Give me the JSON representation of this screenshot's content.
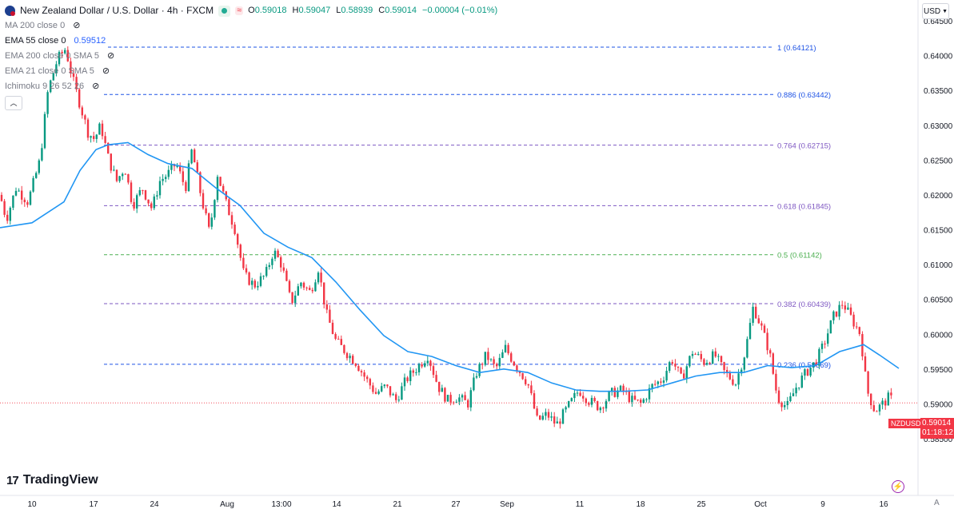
{
  "header": {
    "symbol_title": "New Zealand Dollar / U.S. Dollar · 4h · FXCM",
    "ohlc": [
      {
        "k": "O",
        "v": "0.59018"
      },
      {
        "k": "H",
        "v": "0.59047"
      },
      {
        "k": "L",
        "v": "0.58939"
      },
      {
        "k": "C",
        "v": "0.59014"
      },
      {
        "k": "",
        "v": "−0.00004 (−0.01%)"
      }
    ],
    "currency": "USD"
  },
  "indicators": [
    {
      "label": "MA 200 close 0",
      "value": ""
    },
    {
      "label": "EMA 55 close 0",
      "value": "0.59512"
    },
    {
      "label": "EMA 200 close 0 SMA 5",
      "value": ""
    },
    {
      "label": "EMA 21 close 0 SMA 5",
      "value": ""
    },
    {
      "label": "Ichimoku 9 26 52 26",
      "value": ""
    }
  ],
  "price_tag": {
    "symbol": "NZDUSD",
    "price": "0.59014",
    "countdown": "01:18:12"
  },
  "brand": "TradingView",
  "colors": {
    "up": "#089981",
    "down": "#f23645",
    "ema": "#2196f3",
    "fib_blue": "#1e53e5",
    "fib_purple": "#7e57c2",
    "fib_green": "#4caf50"
  },
  "chart_data": {
    "type": "candlestick",
    "title": "New Zealand Dollar / U.S. Dollar · 4h · FXCM",
    "ylim": [
      0.583,
      0.646
    ],
    "y_ticks": [
      "0.64500",
      "0.64000",
      "0.63500",
      "0.63000",
      "0.62500",
      "0.62000",
      "0.61500",
      "0.61000",
      "0.60500",
      "0.60000",
      "0.59500",
      "0.59000",
      "0.58500"
    ],
    "x_ticks": [
      "10",
      "17",
      "24",
      "Aug",
      "13:00",
      "14",
      "21",
      "27",
      "Sep",
      "11",
      "18",
      "25",
      "Oct",
      "9",
      "16"
    ],
    "fib_levels": [
      {
        "label": "1 (0.64121)",
        "price": 0.64121,
        "color": "fib_blue"
      },
      {
        "label": "0.886 (0.63442)",
        "price": 0.63442,
        "color": "fib_blue"
      },
      {
        "label": "0.764 (0.62715)",
        "price": 0.62715,
        "color": "fib_purple"
      },
      {
        "label": "0.618 (0.61845)",
        "price": 0.61845,
        "color": "fib_purple"
      },
      {
        "label": "0.5 (0.61142)",
        "price": 0.61142,
        "color": "fib_green"
      },
      {
        "label": "0.382 (0.60439)",
        "price": 0.60439,
        "color": "fib_purple"
      },
      {
        "label": "0.236 (0.59569)",
        "price": 0.59569,
        "color": "fib_blue"
      }
    ],
    "close_anchors": [
      [
        0,
        0.62
      ],
      [
        8,
        0.6165
      ],
      [
        20,
        0.621
      ],
      [
        35,
        0.619
      ],
      [
        50,
        0.625
      ],
      [
        60,
        0.635
      ],
      [
        72,
        0.6395
      ],
      [
        82,
        0.641
      ],
      [
        90,
        0.637
      ],
      [
        100,
        0.633
      ],
      [
        110,
        0.629
      ],
      [
        118,
        0.628
      ],
      [
        126,
        0.63
      ],
      [
        136,
        0.625
      ],
      [
        146,
        0.622
      ],
      [
        156,
        0.624
      ],
      [
        166,
        0.6185
      ],
      [
        178,
        0.621
      ],
      [
        190,
        0.618
      ],
      [
        200,
        0.622
      ],
      [
        210,
        0.623
      ],
      [
        220,
        0.6245
      ],
      [
        232,
        0.621
      ],
      [
        240,
        0.6265
      ],
      [
        252,
        0.6195
      ],
      [
        262,
        0.6145
      ],
      [
        272,
        0.623
      ],
      [
        282,
        0.619
      ],
      [
        294,
        0.615
      ],
      [
        305,
        0.6085
      ],
      [
        318,
        0.607
      ],
      [
        332,
        0.6085
      ],
      [
        342,
        0.612
      ],
      [
        352,
        0.61
      ],
      [
        364,
        0.6045
      ],
      [
        376,
        0.6075
      ],
      [
        388,
        0.606
      ],
      [
        398,
        0.6095
      ],
      [
        408,
        0.603
      ],
      [
        420,
        0.599
      ],
      [
        432,
        0.5975
      ],
      [
        445,
        0.596
      ],
      [
        458,
        0.5935
      ],
      [
        470,
        0.5915
      ],
      [
        482,
        0.5925
      ],
      [
        495,
        0.5905
      ],
      [
        508,
        0.5935
      ],
      [
        520,
        0.595
      ],
      [
        535,
        0.597
      ],
      [
        548,
        0.5925
      ],
      [
        560,
        0.5905
      ],
      [
        572,
        0.591
      ],
      [
        585,
        0.59
      ],
      [
        596,
        0.5945
      ],
      [
        608,
        0.597
      ],
      [
        620,
        0.595
      ],
      [
        632,
        0.598
      ],
      [
        645,
        0.5955
      ],
      [
        660,
        0.593
      ],
      [
        672,
        0.5875
      ],
      [
        684,
        0.5885
      ],
      [
        696,
        0.587
      ],
      [
        710,
        0.5895
      ],
      [
        724,
        0.592
      ],
      [
        736,
        0.5905
      ],
      [
        750,
        0.5895
      ],
      [
        764,
        0.5915
      ],
      [
        778,
        0.592
      ],
      [
        790,
        0.5905
      ],
      [
        802,
        0.59
      ],
      [
        815,
        0.5925
      ],
      [
        828,
        0.5935
      ],
      [
        840,
        0.5965
      ],
      [
        852,
        0.5935
      ],
      [
        866,
        0.5975
      ],
      [
        880,
        0.596
      ],
      [
        894,
        0.597
      ],
      [
        906,
        0.5945
      ],
      [
        920,
        0.593
      ],
      [
        932,
        0.5975
      ],
      [
        942,
        0.604
      ],
      [
        952,
        0.601
      ],
      [
        962,
        0.5975
      ],
      [
        972,
        0.591
      ],
      [
        984,
        0.5895
      ],
      [
        996,
        0.5925
      ],
      [
        1008,
        0.5945
      ],
      [
        1020,
        0.596
      ],
      [
        1030,
        0.5985
      ],
      [
        1042,
        0.6025
      ],
      [
        1054,
        0.6045
      ],
      [
        1066,
        0.602
      ],
      [
        1076,
        0.6
      ],
      [
        1084,
        0.592
      ],
      [
        1094,
        0.589
      ],
      [
        1104,
        0.59
      ],
      [
        1112,
        0.591
      ],
      [
        1118,
        0.59014
      ]
    ],
    "ema55_anchors": [
      [
        0,
        0.6153
      ],
      [
        40,
        0.616
      ],
      [
        80,
        0.619
      ],
      [
        100,
        0.6235
      ],
      [
        120,
        0.6265
      ],
      [
        135,
        0.6272
      ],
      [
        160,
        0.6275
      ],
      [
        185,
        0.6258
      ],
      [
        210,
        0.6245
      ],
      [
        240,
        0.6238
      ],
      [
        270,
        0.621
      ],
      [
        300,
        0.6185
      ],
      [
        330,
        0.6145
      ],
      [
        360,
        0.6125
      ],
      [
        390,
        0.611
      ],
      [
        420,
        0.6075
      ],
      [
        450,
        0.6035
      ],
      [
        480,
        0.5998
      ],
      [
        510,
        0.5975
      ],
      [
        540,
        0.5968
      ],
      [
        570,
        0.5955
      ],
      [
        600,
        0.5945
      ],
      [
        630,
        0.595
      ],
      [
        660,
        0.5945
      ],
      [
        690,
        0.593
      ],
      [
        720,
        0.592
      ],
      [
        750,
        0.5918
      ],
      [
        780,
        0.5918
      ],
      [
        810,
        0.592
      ],
      [
        840,
        0.593
      ],
      [
        870,
        0.594
      ],
      [
        900,
        0.5945
      ],
      [
        930,
        0.5945
      ],
      [
        960,
        0.5955
      ],
      [
        990,
        0.5952
      ],
      [
        1020,
        0.5955
      ],
      [
        1050,
        0.5975
      ],
      [
        1080,
        0.5985
      ],
      [
        1100,
        0.597
      ],
      [
        1124,
        0.5951
      ]
    ]
  }
}
